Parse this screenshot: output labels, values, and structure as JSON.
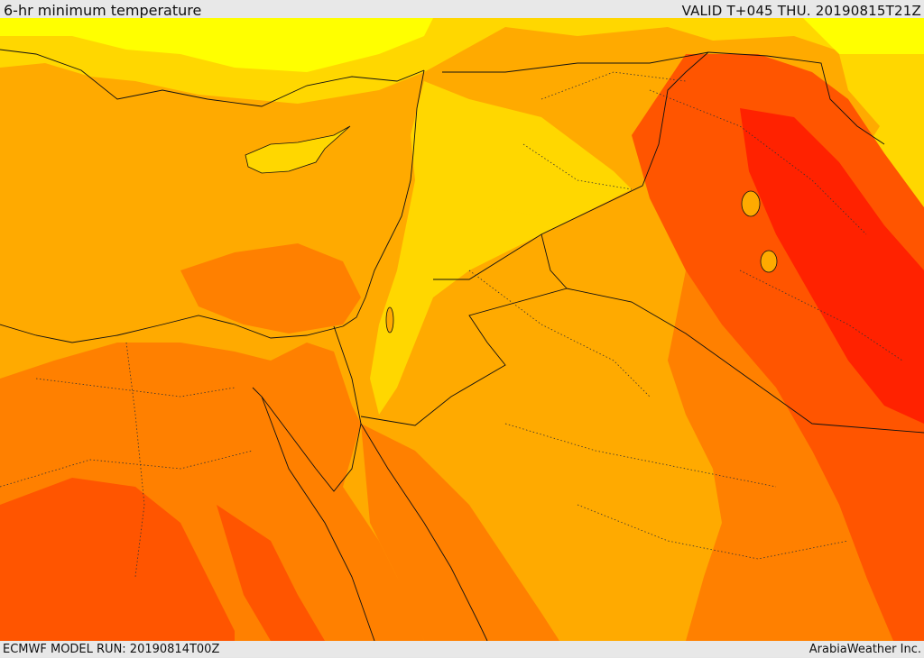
{
  "header": {
    "title": "6-hr minimum temperature",
    "valid": "VALID T+045 THU. 20190815T21Z"
  },
  "footer": {
    "model_run": "ECMWF MODEL RUN: 20190814T00Z",
    "credit": "ArabiaWeather Inc."
  },
  "colors": {
    "yellow": "#ffff00",
    "light_gold": "#ffd700",
    "gold": "#ffaa00",
    "orange": "#ff8000",
    "dark_orange": "#ff5500",
    "red": "#ff2200",
    "border": "#111111"
  }
}
